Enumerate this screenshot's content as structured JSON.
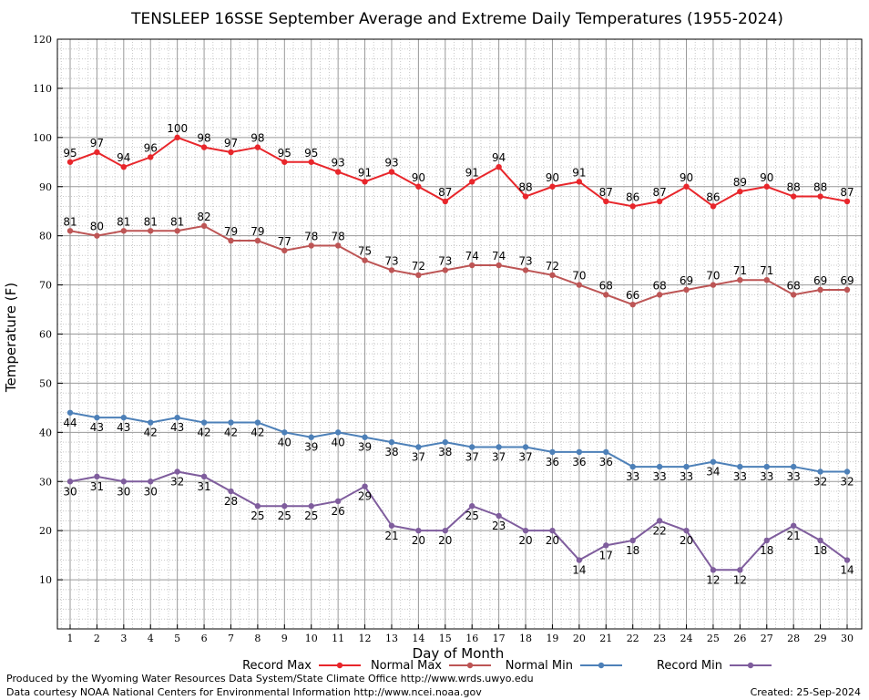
{
  "chart_data": {
    "type": "line",
    "title": "TENSLEEP 16SSE September Average and Extreme Daily Temperatures (1955-2024)",
    "xlabel": "Day of Month",
    "ylabel": "Temperature (F)",
    "x": [
      1,
      2,
      3,
      4,
      5,
      6,
      7,
      8,
      9,
      10,
      11,
      12,
      13,
      14,
      15,
      16,
      17,
      18,
      19,
      20,
      21,
      22,
      23,
      24,
      25,
      26,
      27,
      28,
      29,
      30
    ],
    "ylim": [
      0,
      120
    ],
    "yticks": [
      10,
      20,
      30,
      40,
      50,
      60,
      70,
      80,
      90,
      100,
      110,
      120
    ],
    "grid": true,
    "legend_position": "bottom",
    "series": [
      {
        "name": "Record Max",
        "color": "#e8262b",
        "values": [
          95,
          97,
          94,
          96,
          100,
          98,
          97,
          98,
          95,
          95,
          93,
          91,
          93,
          90,
          87,
          91,
          94,
          88,
          90,
          91,
          87,
          86,
          87,
          90,
          86,
          89,
          90,
          88,
          88,
          87
        ]
      },
      {
        "name": "Normal Max",
        "color": "#bd5555",
        "values": [
          81,
          80,
          81,
          81,
          81,
          82,
          79,
          79,
          77,
          78,
          78,
          75,
          73,
          72,
          73,
          74,
          74,
          73,
          72,
          70,
          68,
          66,
          68,
          69,
          70,
          71,
          71,
          68,
          69,
          69
        ]
      },
      {
        "name": "Normal Min",
        "color": "#4d80b8",
        "values": [
          44,
          43,
          43,
          42,
          43,
          42,
          42,
          42,
          40,
          39,
          40,
          39,
          38,
          37,
          38,
          37,
          37,
          37,
          36,
          36,
          36,
          33,
          33,
          33,
          34,
          33,
          33,
          33,
          32,
          32
        ]
      },
      {
        "name": "Record Min",
        "color": "#7f5d9d",
        "values": [
          30,
          31,
          30,
          30,
          32,
          31,
          28,
          25,
          25,
          25,
          26,
          29,
          21,
          20,
          20,
          25,
          23,
          20,
          20,
          14,
          17,
          18,
          22,
          20,
          12,
          12,
          18,
          21,
          18,
          14
        ]
      }
    ]
  },
  "footer": {
    "produced_by": "Produced by the Wyoming Water Resources Data System/State Climate Office http://www.wrds.uwyo.edu",
    "courtesy": "Data courtesy NOAA National Centers for Environmental Information http://www.ncei.noaa.gov",
    "created": "Created:  25-Sep-2024"
  }
}
